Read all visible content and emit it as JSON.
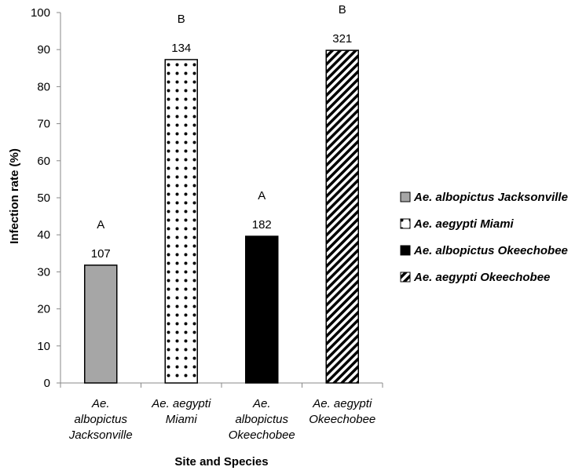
{
  "chart_data": {
    "type": "bar",
    "categories": [
      [
        "Ae.",
        "albopictus",
        "Jacksonville"
      ],
      [
        "Ae. aegypti",
        "Miami"
      ],
      [
        "Ae.",
        "albopictus",
        "Okeechobee"
      ],
      [
        "Ae. aegypti",
        "Okeechobee"
      ]
    ],
    "values": [
      31.8,
      87.3,
      39.6,
      89.8
    ],
    "n_labels": [
      "107",
      "134",
      "182",
      "321"
    ],
    "group_letters": [
      "A",
      "B",
      "A",
      "B"
    ],
    "ylabel": "Infection rate (%)",
    "xlabel": "Site and Species",
    "ylim": [
      0,
      100
    ],
    "yticks": [
      0,
      10,
      20,
      30,
      40,
      50,
      60,
      70,
      80,
      90,
      100
    ],
    "grid": false,
    "legend": {
      "position": "right",
      "entries": [
        "Ae. albopictus Jacksonville",
        "Ae. aegypti Miami",
        "Ae. albopictus Okeechobee",
        "Ae. aegypti Okeechobee"
      ]
    },
    "fills": [
      "gray",
      "white-dots",
      "black",
      "diagonal-hatch"
    ],
    "colors": {
      "gray": "#a6a6a6",
      "black": "#000000",
      "axis": "#888888"
    }
  }
}
